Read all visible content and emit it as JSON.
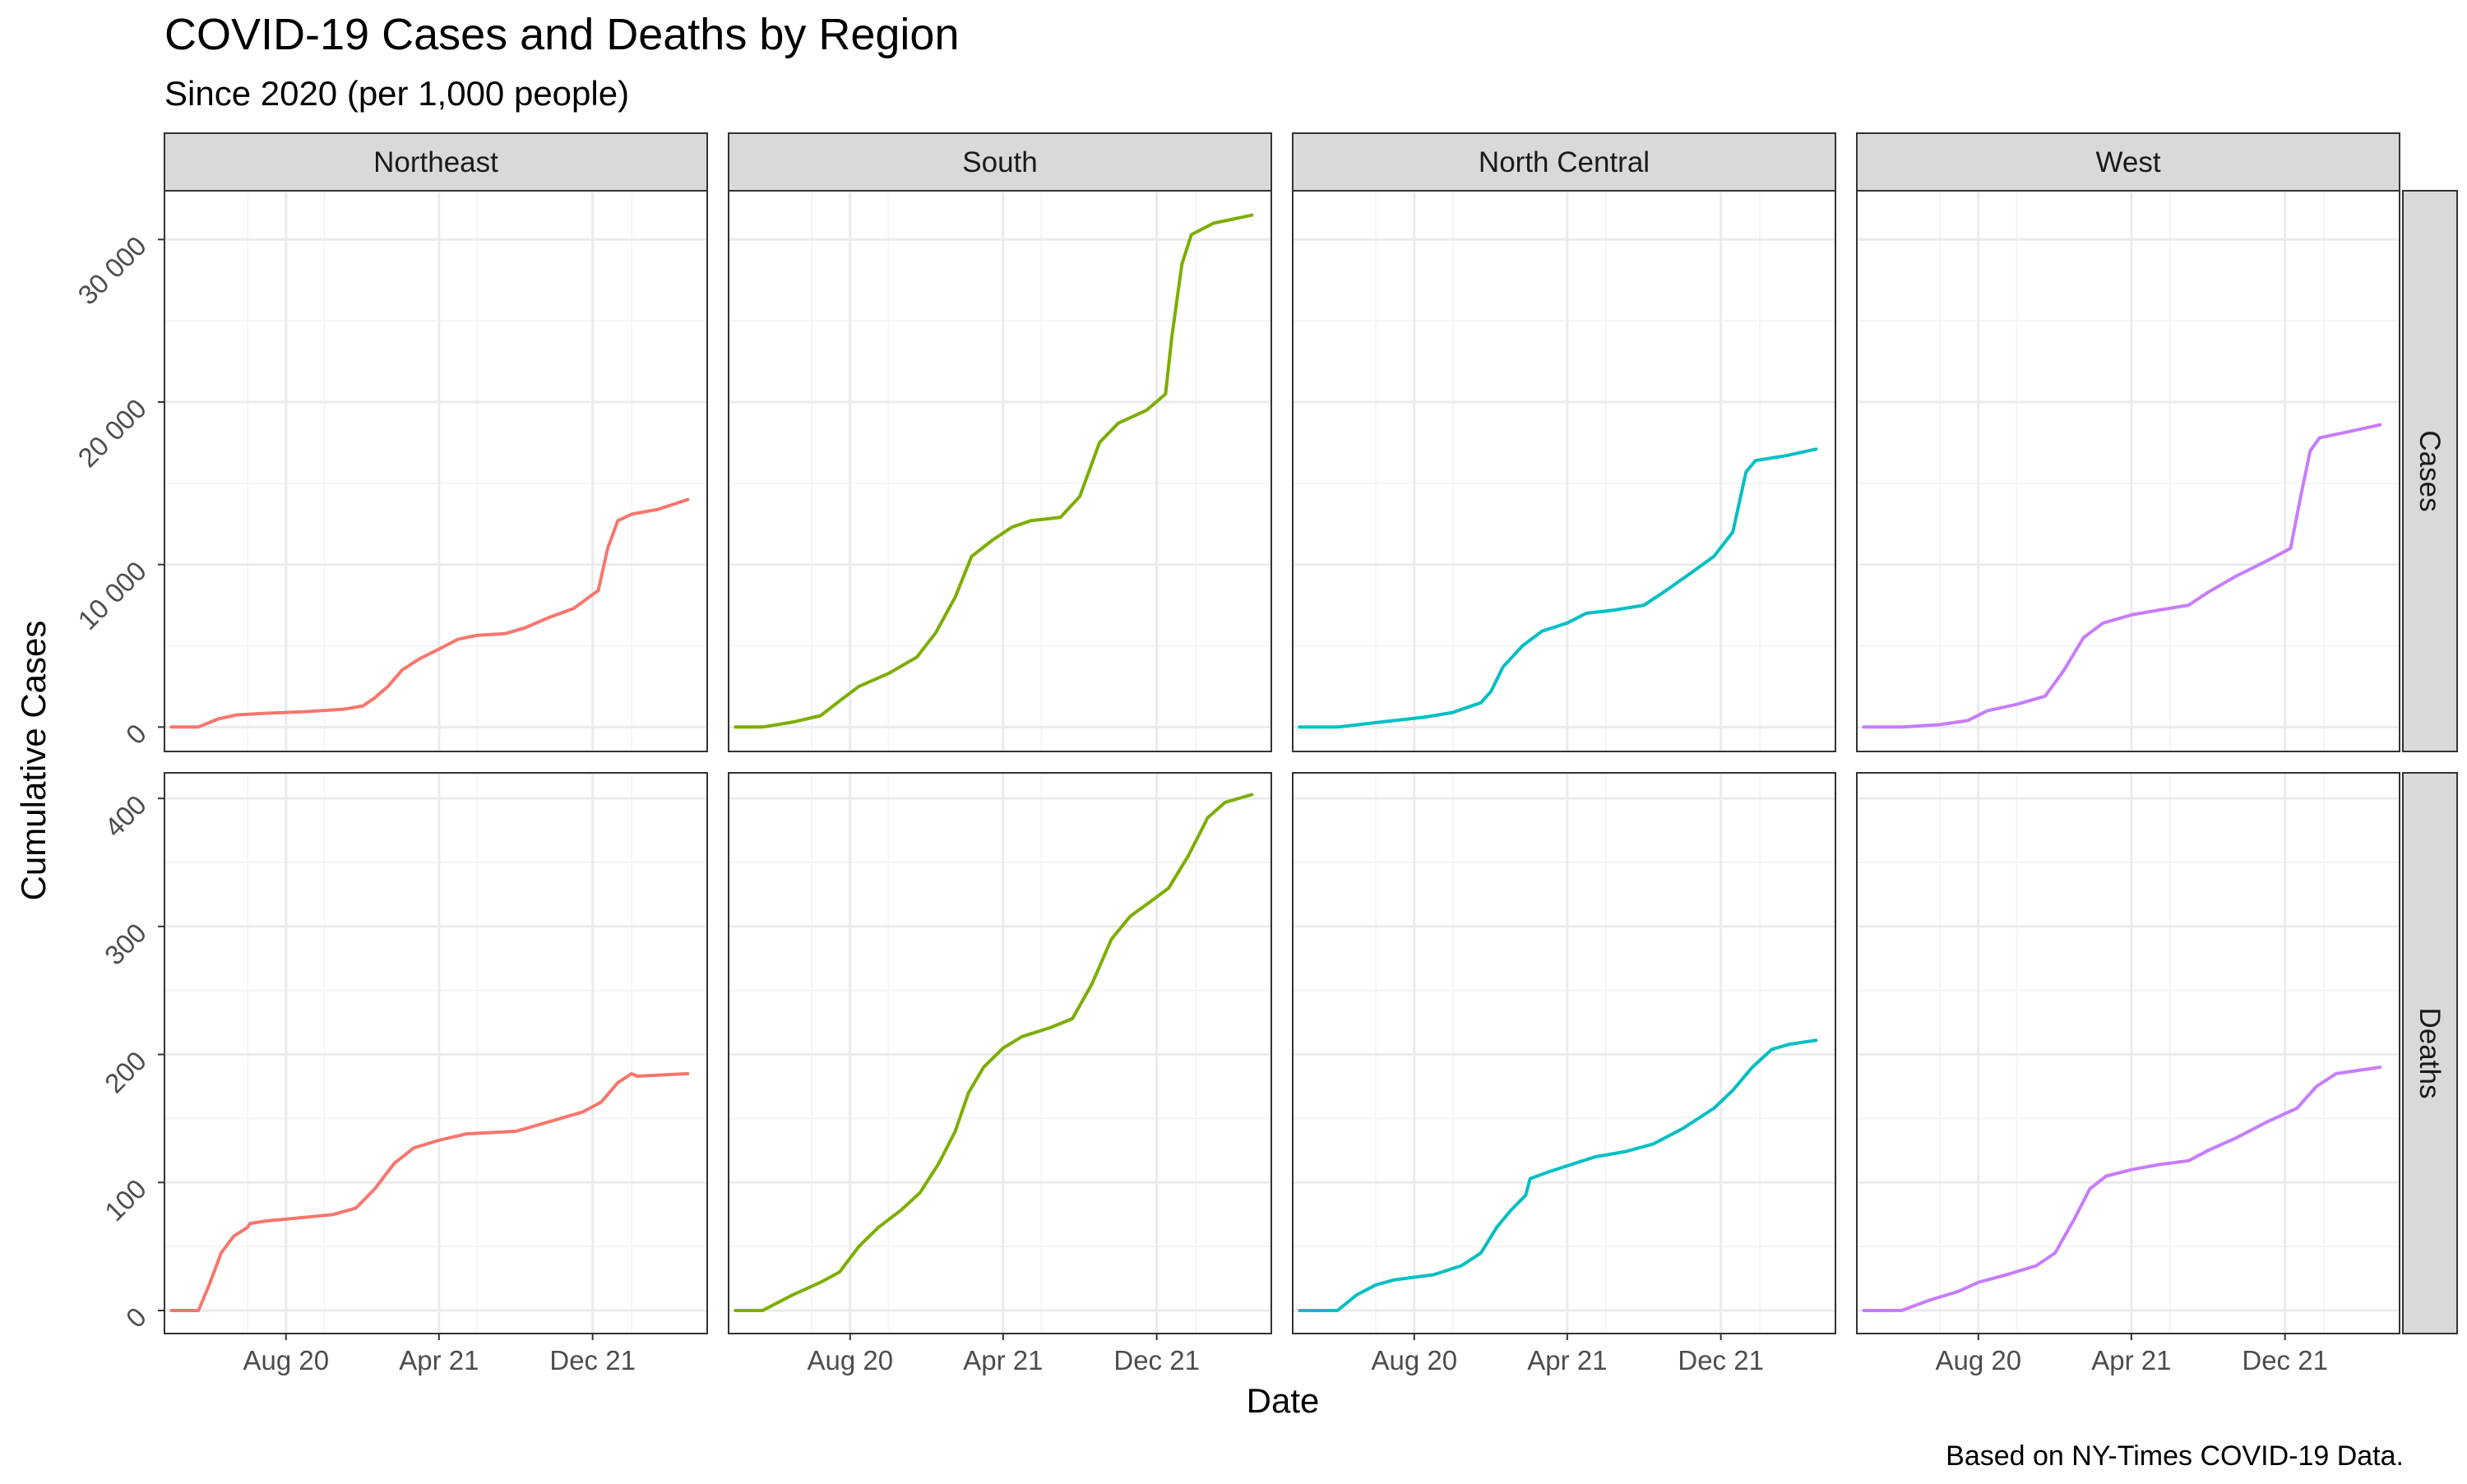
{
  "title": "COVID-19 Cases and Deaths by Region",
  "subtitle": "Since 2020 (per 1,000 people)",
  "caption": "Based on NY-Times COVID-19 Data.",
  "colors": {
    "Northeast": "#F8766D",
    "South": "#7CAE00",
    "North Central": "#00BFC4",
    "West": "#C77CFF",
    "strip_fill": "#D9D9D9",
    "grid_major": "#EBEBEB",
    "grid_minor": "#F5F5F5"
  },
  "chart_data": {
    "type": "line",
    "layout": "facet_grid",
    "x_label": "Date",
    "y_label": "Cumulative Cases",
    "x_range": [
      "2020-01-21",
      "2022-06-01"
    ],
    "x_ticks": [
      {
        "date": "2020-08-01",
        "label": "Aug 20"
      },
      {
        "date": "2021-04-01",
        "label": "Apr 21"
      },
      {
        "date": "2021-12-01",
        "label": "Dec 21"
      }
    ],
    "columns": [
      "Northeast",
      "South",
      "North Central",
      "West"
    ],
    "rows": [
      {
        "name": "Cases",
        "y_range": [
          -1500,
          33000
        ],
        "y_ticks": [
          {
            "value": 0,
            "label": "0"
          },
          {
            "value": 10000,
            "label": "10 000"
          },
          {
            "value": 20000,
            "label": "20 000"
          },
          {
            "value": 30000,
            "label": "30 000"
          }
        ],
        "series": [
          {
            "region": "Northeast",
            "points": [
              [
                "2020-02-01",
                0
              ],
              [
                "2020-03-15",
                0
              ],
              [
                "2020-04-15",
                500
              ],
              [
                "2020-05-15",
                750
              ],
              [
                "2020-07-01",
                850
              ],
              [
                "2020-09-01",
                950
              ],
              [
                "2020-11-01",
                1100
              ],
              [
                "2020-12-01",
                1300
              ],
              [
                "2020-12-20",
                1800
              ],
              [
                "2021-01-10",
                2500
              ],
              [
                "2021-02-01",
                3500
              ],
              [
                "2021-03-01",
                4200
              ],
              [
                "2021-04-01",
                4800
              ],
              [
                "2021-05-01",
                5400
              ],
              [
                "2021-06-01",
                5650
              ],
              [
                "2021-07-15",
                5750
              ],
              [
                "2021-08-15",
                6100
              ],
              [
                "2021-09-20",
                6700
              ],
              [
                "2021-11-01",
                7300
              ],
              [
                "2021-12-10",
                8400
              ],
              [
                "2021-12-25",
                11000
              ],
              [
                "2022-01-10",
                12700
              ],
              [
                "2022-02-01",
                13100
              ],
              [
                "2022-03-15",
                13400
              ],
              [
                "2022-05-01",
                14000
              ]
            ]
          },
          {
            "region": "South",
            "points": [
              [
                "2020-02-01",
                0
              ],
              [
                "2020-03-15",
                0
              ],
              [
                "2020-05-01",
                300
              ],
              [
                "2020-06-15",
                700
              ],
              [
                "2020-07-15",
                1600
              ],
              [
                "2020-08-15",
                2500
              ],
              [
                "2020-10-01",
                3300
              ],
              [
                "2020-11-15",
                4300
              ],
              [
                "2020-12-15",
                5800
              ],
              [
                "2021-01-15",
                8000
              ],
              [
                "2021-02-10",
                10500
              ],
              [
                "2021-03-15",
                11500
              ],
              [
                "2021-04-15",
                12300
              ],
              [
                "2021-05-15",
                12700
              ],
              [
                "2021-07-01",
                12900
              ],
              [
                "2021-08-01",
                14200
              ],
              [
                "2021-09-01",
                17500
              ],
              [
                "2021-10-01",
                18700
              ],
              [
                "2021-11-15",
                19500
              ],
              [
                "2021-12-15",
                20500
              ],
              [
                "2021-12-25",
                24000
              ],
              [
                "2022-01-10",
                28500
              ],
              [
                "2022-01-25",
                30300
              ],
              [
                "2022-03-01",
                31000
              ],
              [
                "2022-05-01",
                31500
              ]
            ]
          },
          {
            "region": "North Central",
            "points": [
              [
                "2020-02-01",
                0
              ],
              [
                "2020-04-01",
                0
              ],
              [
                "2020-05-15",
                200
              ],
              [
                "2020-07-01",
                400
              ],
              [
                "2020-08-15",
                600
              ],
              [
                "2020-10-01",
                900
              ],
              [
                "2020-11-15",
                1500
              ],
              [
                "2020-12-01",
                2200
              ],
              [
                "2020-12-20",
                3700
              ],
              [
                "2021-01-20",
                5000
              ],
              [
                "2021-02-20",
                5900
              ],
              [
                "2021-04-01",
                6400
              ],
              [
                "2021-05-01",
                7000
              ],
              [
                "2021-06-15",
                7200
              ],
              [
                "2021-08-01",
                7500
              ],
              [
                "2021-09-01",
                8300
              ],
              [
                "2021-10-15",
                9500
              ],
              [
                "2021-11-20",
                10500
              ],
              [
                "2021-12-20",
                12000
              ],
              [
                "2022-01-10",
                15700
              ],
              [
                "2022-01-25",
                16400
              ],
              [
                "2022-03-15",
                16700
              ],
              [
                "2022-05-01",
                17100
              ]
            ]
          },
          {
            "region": "West",
            "points": [
              [
                "2020-02-01",
                0
              ],
              [
                "2020-04-01",
                0
              ],
              [
                "2020-06-01",
                150
              ],
              [
                "2020-07-15",
                400
              ],
              [
                "2020-08-15",
                1000
              ],
              [
                "2020-10-01",
                1400
              ],
              [
                "2020-11-15",
                1900
              ],
              [
                "2020-12-15",
                3500
              ],
              [
                "2021-01-15",
                5500
              ],
              [
                "2021-02-15",
                6400
              ],
              [
                "2021-04-01",
                6900
              ],
              [
                "2021-05-15",
                7200
              ],
              [
                "2021-07-01",
                7500
              ],
              [
                "2021-08-01",
                8300
              ],
              [
                "2021-09-15",
                9300
              ],
              [
                "2021-11-01",
                10200
              ],
              [
                "2021-12-10",
                11000
              ],
              [
                "2021-12-25",
                14000
              ],
              [
                "2022-01-10",
                17000
              ],
              [
                "2022-01-25",
                17800
              ],
              [
                "2022-03-15",
                18200
              ],
              [
                "2022-05-01",
                18600
              ]
            ]
          }
        ]
      },
      {
        "name": "Deaths",
        "y_range": [
          -18,
          420
        ],
        "y_ticks": [
          {
            "value": 0,
            "label": "0"
          },
          {
            "value": 100,
            "label": "100"
          },
          {
            "value": 200,
            "label": "200"
          },
          {
            "value": 300,
            "label": "300"
          },
          {
            "value": 400,
            "label": "400"
          }
        ],
        "series": [
          {
            "region": "Northeast",
            "points": [
              [
                "2020-02-01",
                0
              ],
              [
                "2020-03-15",
                0
              ],
              [
                "2020-04-01",
                20
              ],
              [
                "2020-04-20",
                45
              ],
              [
                "2020-05-10",
                58
              ],
              [
                "2020-06-01",
                65
              ],
              [
                "2020-06-05",
                68
              ],
              [
                "2020-07-01",
                70
              ],
              [
                "2020-08-15",
                72
              ],
              [
                "2020-10-15",
                75
              ],
              [
                "2020-11-20",
                80
              ],
              [
                "2020-12-20",
                95
              ],
              [
                "2021-01-20",
                115
              ],
              [
                "2021-02-20",
                127
              ],
              [
                "2021-04-01",
                133
              ],
              [
                "2021-05-15",
                138
              ],
              [
                "2021-08-01",
                140
              ],
              [
                "2021-09-20",
                147
              ],
              [
                "2021-11-15",
                155
              ],
              [
                "2021-12-15",
                163
              ],
              [
                "2022-01-10",
                178
              ],
              [
                "2022-02-01",
                185
              ],
              [
                "2022-02-10",
                183
              ],
              [
                "2022-05-01",
                185
              ]
            ]
          },
          {
            "region": "South",
            "points": [
              [
                "2020-02-01",
                0
              ],
              [
                "2020-03-15",
                0
              ],
              [
                "2020-05-01",
                12
              ],
              [
                "2020-06-15",
                22
              ],
              [
                "2020-07-15",
                30
              ],
              [
                "2020-08-15",
                50
              ],
              [
                "2020-09-15",
                65
              ],
              [
                "2020-10-20",
                78
              ],
              [
                "2020-11-20",
                92
              ],
              [
                "2020-12-20",
                115
              ],
              [
                "2021-01-15",
                140
              ],
              [
                "2021-02-05",
                170
              ],
              [
                "2021-03-01",
                190
              ],
              [
                "2021-04-01",
                205
              ],
              [
                "2021-05-01",
                214
              ],
              [
                "2021-06-15",
                221
              ],
              [
                "2021-07-20",
                228
              ],
              [
                "2021-08-20",
                255
              ],
              [
                "2021-09-20",
                290
              ],
              [
                "2021-10-20",
                308
              ],
              [
                "2021-11-20",
                319
              ],
              [
                "2021-12-20",
                330
              ],
              [
                "2022-01-20",
                355
              ],
              [
                "2022-02-20",
                385
              ],
              [
                "2022-03-20",
                397
              ],
              [
                "2022-05-01",
                403
              ]
            ]
          },
          {
            "region": "North Central",
            "points": [
              [
                "2020-02-01",
                0
              ],
              [
                "2020-04-01",
                0
              ],
              [
                "2020-05-01",
                12
              ],
              [
                "2020-06-01",
                20
              ],
              [
                "2020-07-01",
                24
              ],
              [
                "2020-09-01",
                28
              ],
              [
                "2020-10-15",
                35
              ],
              [
                "2020-11-15",
                45
              ],
              [
                "2020-12-10",
                65
              ],
              [
                "2021-01-01",
                78
              ],
              [
                "2021-01-25",
                90
              ],
              [
                "2021-02-01",
                103
              ],
              [
                "2021-03-01",
                108
              ],
              [
                "2021-04-01",
                113
              ],
              [
                "2021-05-15",
                120
              ],
              [
                "2021-07-01",
                124
              ],
              [
                "2021-08-15",
                130
              ],
              [
                "2021-10-01",
                142
              ],
              [
                "2021-11-20",
                158
              ],
              [
                "2021-12-20",
                172
              ],
              [
                "2022-01-20",
                190
              ],
              [
                "2022-02-20",
                204
              ],
              [
                "2022-03-20",
                208
              ],
              [
                "2022-05-01",
                211
              ]
            ]
          },
          {
            "region": "West",
            "points": [
              [
                "2020-02-01",
                0
              ],
              [
                "2020-04-01",
                0
              ],
              [
                "2020-05-15",
                8
              ],
              [
                "2020-07-01",
                15
              ],
              [
                "2020-08-01",
                22
              ],
              [
                "2020-09-15",
                28
              ],
              [
                "2020-11-01",
                35
              ],
              [
                "2020-12-01",
                45
              ],
              [
                "2021-01-01",
                72
              ],
              [
                "2021-01-25",
                95
              ],
              [
                "2021-02-20",
                105
              ],
              [
                "2021-04-01",
                110
              ],
              [
                "2021-05-15",
                114
              ],
              [
                "2021-07-01",
                117
              ],
              [
                "2021-08-01",
                125
              ],
              [
                "2021-09-15",
                135
              ],
              [
                "2021-11-01",
                147
              ],
              [
                "2021-12-20",
                158
              ],
              [
                "2022-01-20",
                175
              ],
              [
                "2022-02-20",
                185
              ],
              [
                "2022-05-01",
                190
              ]
            ]
          }
        ]
      }
    ]
  }
}
